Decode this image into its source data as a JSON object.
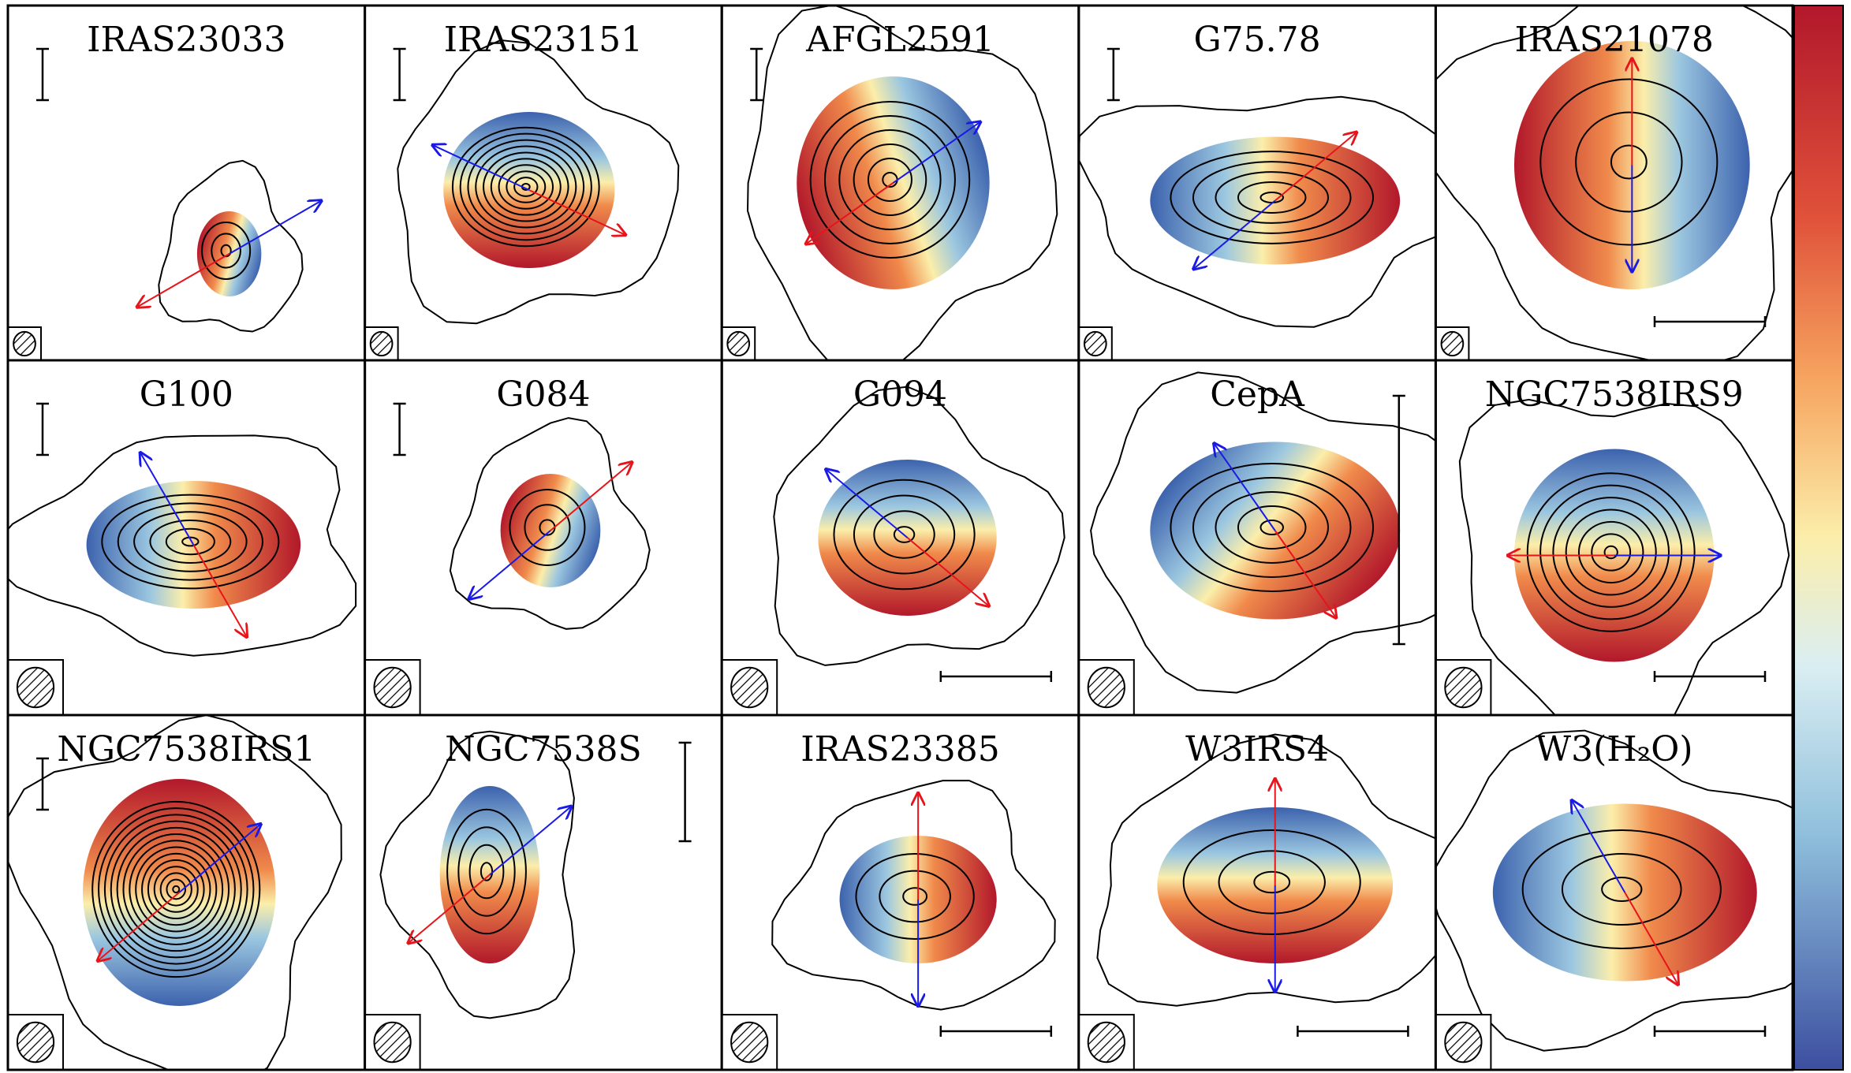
{
  "panels": [
    {
      "title": "IRAS23033"
    },
    {
      "title": "IRAS23151"
    },
    {
      "title": "AFGL2591"
    },
    {
      "title": "G75.78"
    },
    {
      "title": "IRAS21078"
    },
    {
      "title": "G100"
    },
    {
      "title": "G084"
    },
    {
      "title": "G094"
    },
    {
      "title": "CepA"
    },
    {
      "title": "NGC7538IRS9"
    },
    {
      "title": "NGC7538IRS1"
    },
    {
      "title": "NGC7538S"
    },
    {
      "title": "IRAS23385"
    },
    {
      "title": "W3IRS4"
    },
    {
      "title": "W3(H₂O)"
    }
  ]
}
